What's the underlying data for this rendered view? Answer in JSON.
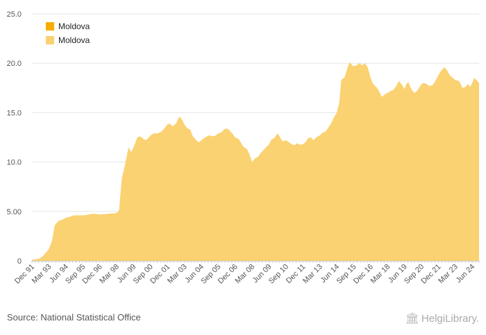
{
  "chart_data": {
    "type": "area",
    "title": "",
    "xlabel": "",
    "ylabel": "",
    "ylim": [
      0,
      25
    ],
    "yticks": [
      "0",
      "5.00",
      "10.0",
      "15.0",
      "20.0",
      "25.0"
    ],
    "ytick_values": [
      0,
      5,
      10,
      15,
      20,
      25
    ],
    "x_range": [
      1991.92,
      2024.92
    ],
    "x_ticks": [
      {
        "label": "Dec 91",
        "x": 1991.92
      },
      {
        "label": "Mar 93",
        "x": 1993.17
      },
      {
        "label": "Jun 94",
        "x": 1994.42
      },
      {
        "label": "Sep 95",
        "x": 1995.67
      },
      {
        "label": "Dec 96",
        "x": 1996.92
      },
      {
        "label": "Mar 98",
        "x": 1998.17
      },
      {
        "label": "Jun 99",
        "x": 1999.42
      },
      {
        "label": "Sep 00",
        "x": 2000.67
      },
      {
        "label": "Dec 01",
        "x": 2001.92
      },
      {
        "label": "Mar 03",
        "x": 2003.17
      },
      {
        "label": "Jun 04",
        "x": 2004.42
      },
      {
        "label": "Sep 05",
        "x": 2005.67
      },
      {
        "label": "Dec 06",
        "x": 2006.92
      },
      {
        "label": "Mar 08",
        "x": 2008.17
      },
      {
        "label": "Jun 09",
        "x": 2009.42
      },
      {
        "label": "Sep 10",
        "x": 2010.67
      },
      {
        "label": "Dec 11",
        "x": 2011.92
      },
      {
        "label": "Mar 13",
        "x": 2013.17
      },
      {
        "label": "Jun 14",
        "x": 2014.42
      },
      {
        "label": "Sep 15",
        "x": 2015.67
      },
      {
        "label": "Dec 16",
        "x": 2016.92
      },
      {
        "label": "Mar 18",
        "x": 2018.17
      },
      {
        "label": "Jun 19",
        "x": 2019.42
      },
      {
        "label": "Sep 20",
        "x": 2020.67
      },
      {
        "label": "Dec 21",
        "x": 2021.92
      },
      {
        "label": "Mar 23",
        "x": 2023.17
      },
      {
        "label": "Jun 24",
        "x": 2024.42
      }
    ],
    "series": [
      {
        "name": "Moldova",
        "color": "#f7ac00",
        "points": []
      },
      {
        "name": "Moldova",
        "color": "#fad272",
        "points": [
          [
            1991.92,
            0.1
          ],
          [
            1992.17,
            0.15
          ],
          [
            1992.5,
            0.25
          ],
          [
            1992.75,
            0.5
          ],
          [
            1993.0,
            0.9
          ],
          [
            1993.17,
            1.2
          ],
          [
            1993.4,
            2.0
          ],
          [
            1993.6,
            3.6
          ],
          [
            1993.9,
            4.05
          ],
          [
            1994.2,
            4.2
          ],
          [
            1994.42,
            4.35
          ],
          [
            1994.7,
            4.45
          ],
          [
            1995.0,
            4.6
          ],
          [
            1995.3,
            4.6
          ],
          [
            1995.67,
            4.6
          ],
          [
            1996.0,
            4.65
          ],
          [
            1996.3,
            4.75
          ],
          [
            1996.6,
            4.75
          ],
          [
            1996.92,
            4.7
          ],
          [
            1997.2,
            4.72
          ],
          [
            1997.5,
            4.75
          ],
          [
            1997.8,
            4.8
          ],
          [
            1998.0,
            4.8
          ],
          [
            1998.17,
            4.85
          ],
          [
            1998.35,
            5.1
          ],
          [
            1998.55,
            8.3
          ],
          [
            1998.8,
            9.8
          ],
          [
            1999.05,
            11.5
          ],
          [
            1999.25,
            11.0
          ],
          [
            1999.42,
            11.5
          ],
          [
            1999.7,
            12.5
          ],
          [
            1999.9,
            12.6
          ],
          [
            2000.1,
            12.4
          ],
          [
            2000.3,
            12.2
          ],
          [
            2000.5,
            12.4
          ],
          [
            2000.67,
            12.7
          ],
          [
            2000.9,
            12.9
          ],
          [
            2001.2,
            12.9
          ],
          [
            2001.5,
            13.1
          ],
          [
            2001.75,
            13.5
          ],
          [
            2001.92,
            13.8
          ],
          [
            2002.1,
            13.9
          ],
          [
            2002.3,
            13.6
          ],
          [
            2002.55,
            13.9
          ],
          [
            2002.8,
            14.6
          ],
          [
            2003.0,
            14.3
          ],
          [
            2003.17,
            13.8
          ],
          [
            2003.4,
            13.4
          ],
          [
            2003.6,
            13.3
          ],
          [
            2003.8,
            12.6
          ],
          [
            2004.05,
            12.2
          ],
          [
            2004.25,
            12.0
          ],
          [
            2004.42,
            12.2
          ],
          [
            2004.7,
            12.5
          ],
          [
            2005.0,
            12.7
          ],
          [
            2005.3,
            12.6
          ],
          [
            2005.5,
            12.7
          ],
          [
            2005.67,
            12.9
          ],
          [
            2005.9,
            13.0
          ],
          [
            2006.1,
            13.3
          ],
          [
            2006.3,
            13.4
          ],
          [
            2006.5,
            13.2
          ],
          [
            2006.7,
            12.9
          ],
          [
            2006.92,
            12.5
          ],
          [
            2007.2,
            12.3
          ],
          [
            2007.5,
            11.6
          ],
          [
            2007.8,
            11.3
          ],
          [
            2008.0,
            10.7
          ],
          [
            2008.17,
            10.0
          ],
          [
            2008.4,
            10.4
          ],
          [
            2008.6,
            10.5
          ],
          [
            2008.8,
            10.9
          ],
          [
            2009.0,
            11.2
          ],
          [
            2009.2,
            11.5
          ],
          [
            2009.42,
            11.8
          ],
          [
            2009.6,
            12.3
          ],
          [
            2009.8,
            12.4
          ],
          [
            2010.05,
            12.9
          ],
          [
            2010.2,
            12.6
          ],
          [
            2010.4,
            12.1
          ],
          [
            2010.67,
            12.2
          ],
          [
            2010.9,
            12.0
          ],
          [
            2011.1,
            11.8
          ],
          [
            2011.3,
            11.7
          ],
          [
            2011.5,
            11.9
          ],
          [
            2011.7,
            11.75
          ],
          [
            2011.92,
            11.8
          ],
          [
            2012.1,
            12.0
          ],
          [
            2012.3,
            12.4
          ],
          [
            2012.5,
            12.5
          ],
          [
            2012.7,
            12.2
          ],
          [
            2012.9,
            12.5
          ],
          [
            2013.17,
            12.7
          ],
          [
            2013.4,
            13.0
          ],
          [
            2013.6,
            13.1
          ],
          [
            2013.8,
            13.5
          ],
          [
            2014.0,
            13.9
          ],
          [
            2014.2,
            14.5
          ],
          [
            2014.42,
            15.0
          ],
          [
            2014.6,
            16.0
          ],
          [
            2014.75,
            18.3
          ],
          [
            2015.0,
            18.6
          ],
          [
            2015.2,
            19.5
          ],
          [
            2015.35,
            20.1
          ],
          [
            2015.55,
            19.8
          ],
          [
            2015.67,
            19.7
          ],
          [
            2015.9,
            19.8
          ],
          [
            2016.1,
            20.0
          ],
          [
            2016.3,
            19.8
          ],
          [
            2016.5,
            20.0
          ],
          [
            2016.7,
            19.6
          ],
          [
            2016.92,
            18.5
          ],
          [
            2017.1,
            17.9
          ],
          [
            2017.4,
            17.5
          ],
          [
            2017.6,
            17.0
          ],
          [
            2017.75,
            16.6
          ],
          [
            2018.0,
            16.9
          ],
          [
            2018.17,
            17.0
          ],
          [
            2018.4,
            17.2
          ],
          [
            2018.6,
            17.3
          ],
          [
            2018.8,
            17.7
          ],
          [
            2019.0,
            18.2
          ],
          [
            2019.2,
            17.9
          ],
          [
            2019.42,
            17.4
          ],
          [
            2019.55,
            17.9
          ],
          [
            2019.7,
            18.1
          ],
          [
            2019.85,
            17.6
          ],
          [
            2020.0,
            17.2
          ],
          [
            2020.2,
            17.0
          ],
          [
            2020.4,
            17.3
          ],
          [
            2020.67,
            17.9
          ],
          [
            2020.85,
            18.0
          ],
          [
            2021.05,
            17.9
          ],
          [
            2021.25,
            17.7
          ],
          [
            2021.5,
            17.8
          ],
          [
            2021.7,
            18.2
          ],
          [
            2021.92,
            18.8
          ],
          [
            2022.1,
            19.2
          ],
          [
            2022.35,
            19.6
          ],
          [
            2022.55,
            19.3
          ],
          [
            2022.75,
            18.8
          ],
          [
            2023.0,
            18.5
          ],
          [
            2023.17,
            18.3
          ],
          [
            2023.45,
            18.2
          ],
          [
            2023.7,
            17.5
          ],
          [
            2023.9,
            17.6
          ],
          [
            2024.1,
            17.9
          ],
          [
            2024.25,
            17.6
          ],
          [
            2024.42,
            18.0
          ],
          [
            2024.55,
            18.5
          ],
          [
            2024.75,
            18.3
          ],
          [
            2024.92,
            18.0
          ]
        ]
      }
    ]
  },
  "legend": {
    "items": [
      {
        "label": "Moldova",
        "color": "#f7ac00"
      },
      {
        "label": "Moldova",
        "color": "#fad272"
      }
    ]
  },
  "footer": {
    "source": "Source: National Statistical Office",
    "brand": "HelgiLibrary."
  }
}
